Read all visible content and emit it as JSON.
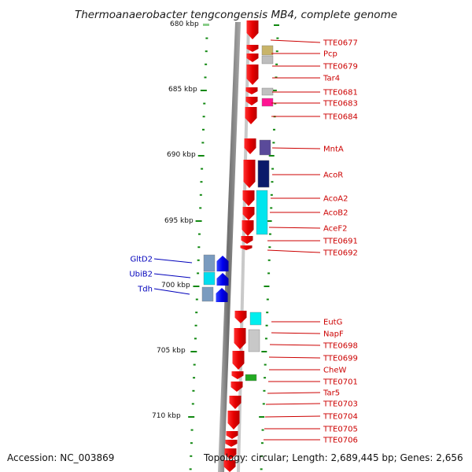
{
  "title": "Thermoanaerobacter tengcongensis MB4, complete genome",
  "footer": {
    "accession": "Accession: NC_003869",
    "topology": "Topology: circular; Length: 2,689,445 bp; Genes: 2,656"
  },
  "colors": {
    "forward_gene": "#ee0000",
    "reverse_gene": "#0000ee",
    "forward_label": "#cc0000",
    "reverse_label": "#0000bb",
    "backbone": "#8a8a8a",
    "tick": "#118811"
  },
  "ruler": {
    "labels": [
      "680 kbp",
      "685 kbp",
      "690 kbp",
      "695 kbp",
      "700 kbp",
      "705 kbp",
      "710 kbp"
    ]
  },
  "forward_genes": [
    {
      "label": "TTE0677"
    },
    {
      "label": "Pcp"
    },
    {
      "label": "TTE0679"
    },
    {
      "label": "Tar4"
    },
    {
      "label": "TTE0681"
    },
    {
      "label": "TTE0683"
    },
    {
      "label": "TTE0684"
    },
    {
      "label": "MntA"
    },
    {
      "label": "AcoR"
    },
    {
      "label": "AcoA2"
    },
    {
      "label": "AcoB2"
    },
    {
      "label": "AceF2"
    },
    {
      "label": "TTE0691"
    },
    {
      "label": "TTE0692"
    },
    {
      "label": "EutG"
    },
    {
      "label": "NapF"
    },
    {
      "label": "TTE0698"
    },
    {
      "label": "TTE0699"
    },
    {
      "label": "CheW"
    },
    {
      "label": "TTE0701"
    },
    {
      "label": "Tar5"
    },
    {
      "label": "TTE0703"
    },
    {
      "label": "TTE0704"
    },
    {
      "label": "TTE0705"
    },
    {
      "label": "TTE0706"
    }
  ],
  "reverse_genes": [
    {
      "label": "GltD2"
    },
    {
      "label": "UbiB2"
    },
    {
      "label": "Tdh"
    }
  ]
}
